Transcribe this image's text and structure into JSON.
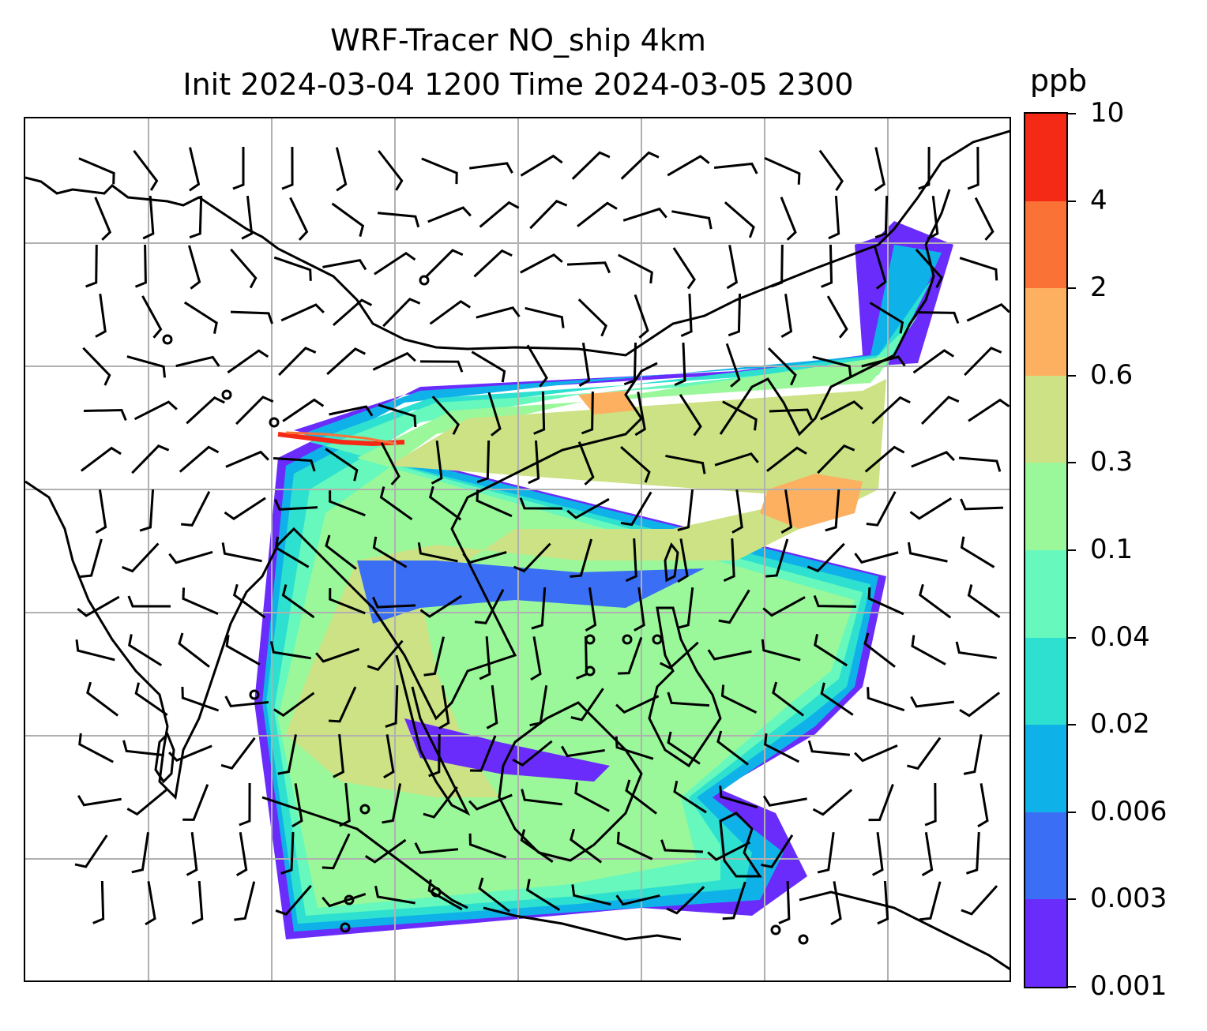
{
  "title": {
    "line1": "WRF-Tracer NO_ship 4km",
    "line2": "Init 2024-03-04 1200 Time 2024-03-05 2300"
  },
  "colorbar": {
    "unit": "ppb",
    "levels": [
      "0.001",
      "0.003",
      "0.006",
      "0.02",
      "0.04",
      "0.1",
      "0.3",
      "0.6",
      "2",
      "4",
      "10"
    ],
    "colors": [
      "#6a2cfb",
      "#3a6ef4",
      "#0fb2e8",
      "#2ee0d0",
      "#66f8bc",
      "#9af89a",
      "#cce284",
      "#fcb060",
      "#fb7236",
      "#f52a16"
    ]
  },
  "map": {
    "colors": {
      "coastline": "#000000",
      "gridline": "#b0b0b0",
      "barb": "#000000"
    }
  }
}
